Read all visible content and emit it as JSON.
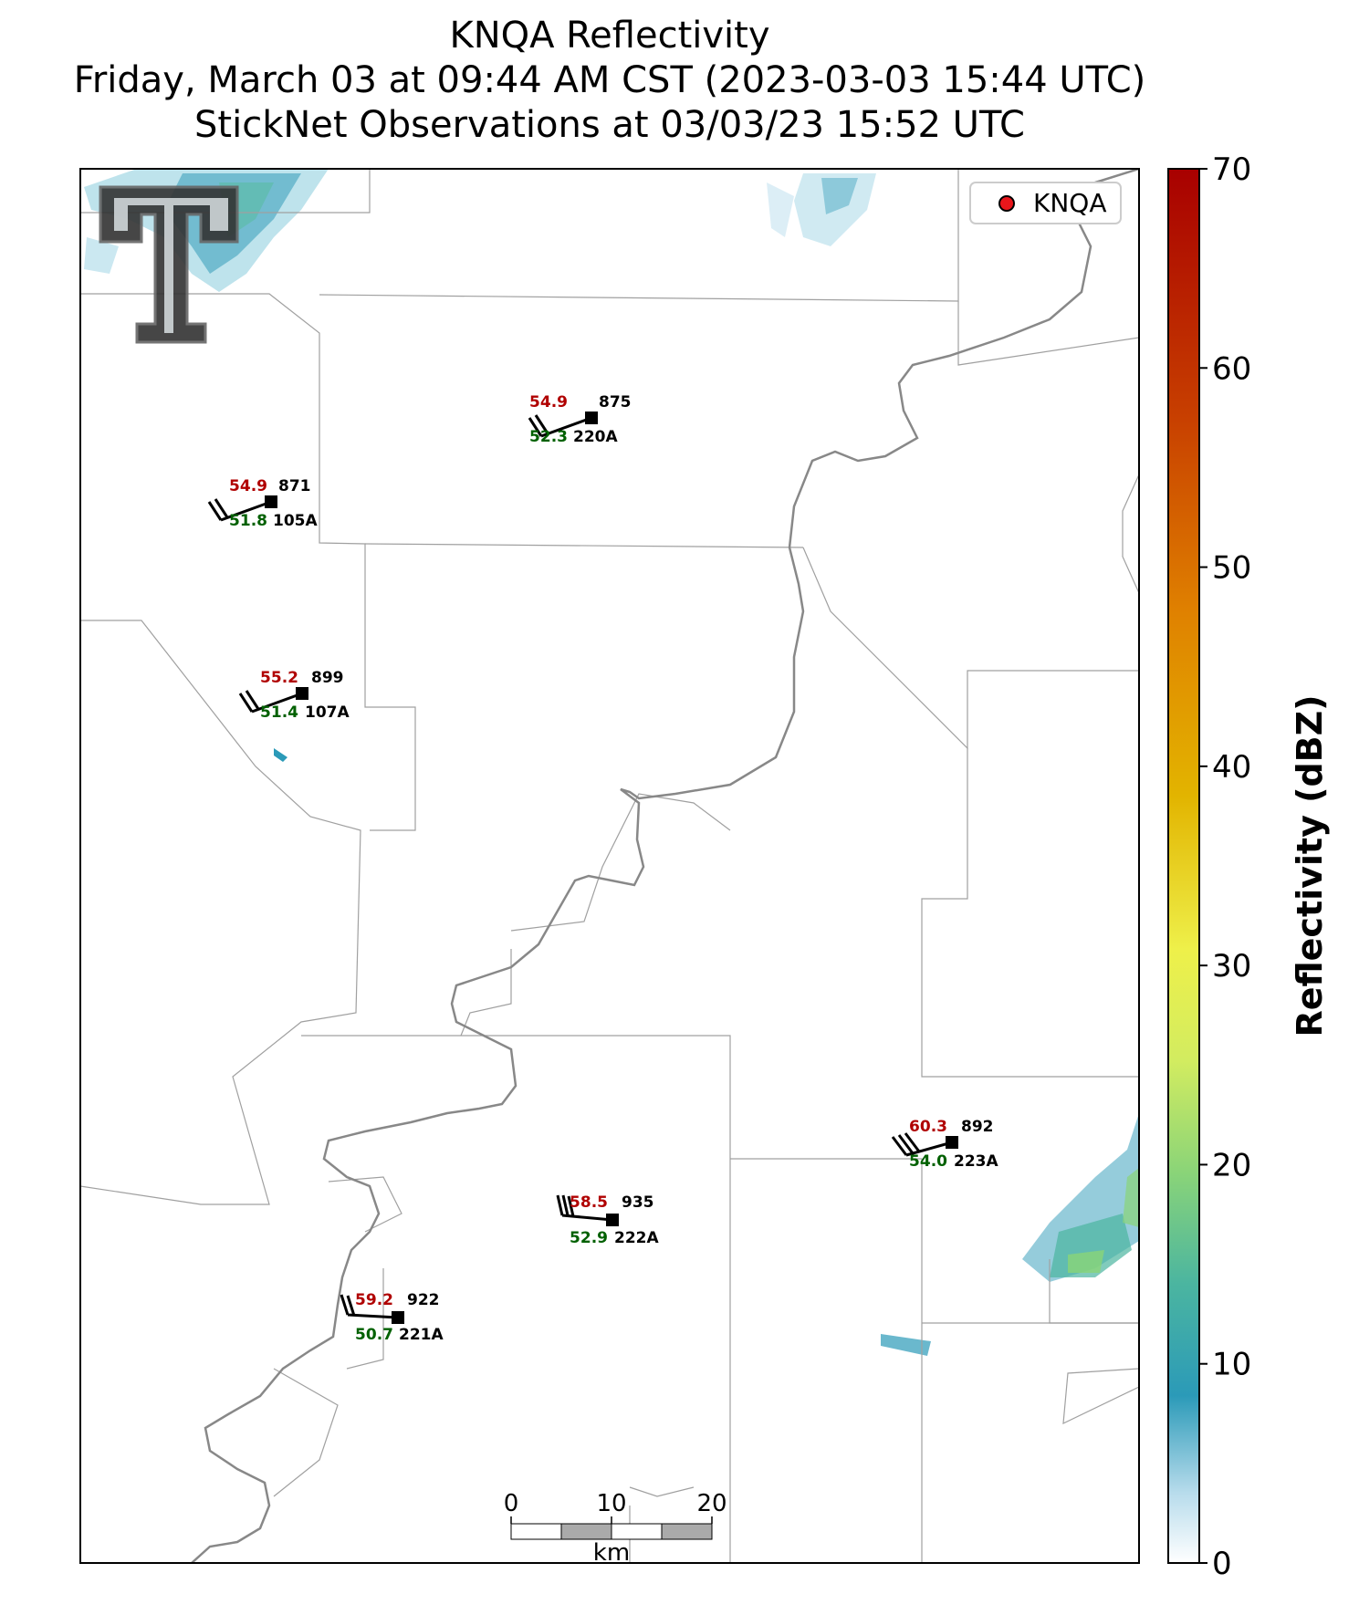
{
  "title": {
    "line1": "KNQA Reflectivity",
    "line2": "Friday, March 03 at 09:44 AM CST (2023-03-03 15:44 UTC)",
    "line3": "StickNet Observations at 03/03/23 15:52 UTC"
  },
  "legend": {
    "label": "KNQA",
    "marker_color": "#e8161b"
  },
  "colorbar": {
    "label": "Reflectivity (dBZ)",
    "ticks": [
      "0",
      "10",
      "20",
      "30",
      "40",
      "50",
      "60",
      "70"
    ],
    "range": [
      0,
      70
    ]
  },
  "scalebar": {
    "ticks": [
      "0",
      "10",
      "20"
    ],
    "unit": "km"
  },
  "logo": {
    "name": "texas-tech-double-t-logo"
  },
  "colors": {
    "temperature": "#b00000",
    "dewpoint": "#006000",
    "river": "#888888",
    "boundary": "#a0a0a0"
  },
  "stations": [
    {
      "id": "220A",
      "temp": "54.9",
      "dew": "52.3",
      "pressure": "875"
    },
    {
      "id": "105A",
      "temp": "54.9",
      "dew": "51.8",
      "pressure": "871"
    },
    {
      "id": "107A",
      "temp": "55.2",
      "dew": "51.4",
      "pressure": "899"
    },
    {
      "id": "223A",
      "temp": "60.3",
      "dew": "54.0",
      "pressure": "892"
    },
    {
      "id": "222A",
      "temp": "58.5",
      "dew": "52.9",
      "pressure": "935"
    },
    {
      "id": "221A",
      "temp": "59.2",
      "dew": "50.7",
      "pressure": "922"
    }
  ]
}
